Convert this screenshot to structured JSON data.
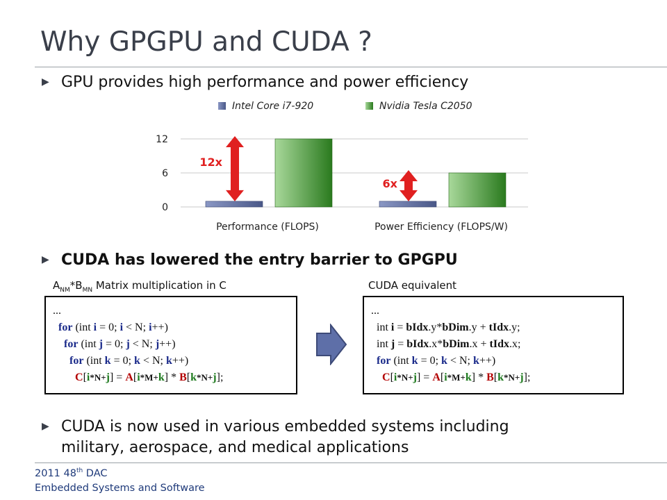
{
  "slide": {
    "title": "Why GPGPU and CUDA ?"
  },
  "bullets": [
    {
      "marker": "▶",
      "text": "GPU provides high performance and power efficiency"
    },
    {
      "marker": "▶",
      "text": "CUDA has lowered the entry barrier to GPGPU"
    },
    {
      "marker": "▶",
      "line1": "CUDA is now used in various embedded systems including",
      "line2": "military, aerospace, and medical applications"
    }
  ],
  "chart_data": {
    "type": "bar",
    "categories": [
      "Performance (FLOPS)",
      "Power Efficiency (FLOPS/W)"
    ],
    "series": [
      {
        "name": "Intel Core i7-920",
        "values": [
          1,
          1
        ],
        "color": "#5b6a9e"
      },
      {
        "name": "Nvidia Tesla C2050",
        "values": [
          12,
          6
        ],
        "color": "#3c9a2e"
      }
    ],
    "yticks": [
      "0",
      "6",
      "12"
    ],
    "ylim": [
      0,
      12
    ],
    "annotations": [
      "12x",
      "6x"
    ],
    "annotation_color": "#e02020",
    "legend_position": "top",
    "grid": true
  },
  "code": {
    "left_label_a": "A",
    "left_label_sub1": "NM",
    "left_label_b": "*B",
    "left_label_sub2": "MN",
    "left_label_rest": " Matrix multiplication in C",
    "right_label": "CUDA equivalent"
  },
  "footer": {
    "line1_a": "2011 48",
    "line1_sup": "th",
    "line1_b": " DAC",
    "line2": "Embedded Systems and Software"
  }
}
